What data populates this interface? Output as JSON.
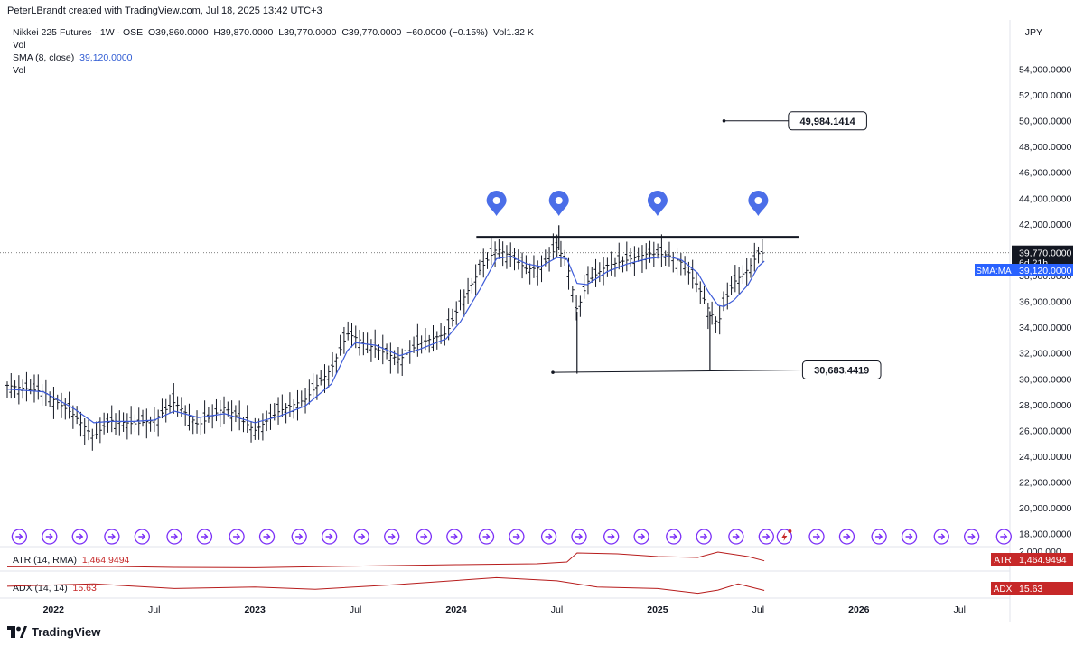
{
  "header": {
    "credit": "PeterLBrandt created with TradingView.com, Jul 18, 2025 13:42 UTC+3",
    "symbol": "Nikkei 225 Futures · 1W · OSE",
    "ohlc": {
      "o_label": "O",
      "o": "39,860.0000",
      "h_label": "H",
      "h": "39,870.0000",
      "l_label": "L",
      "l": "39,770.0000",
      "c_label": "C",
      "c": "39,770.0000",
      "change": "−60.0000 (−0.15%)",
      "vol_label": "Vol",
      "vol": "1.32 K"
    },
    "vol_row_1": "Vol",
    "sma_label": "SMA (8, close)",
    "sma_value": "39,120.0000",
    "vol_row_2": "Vol"
  },
  "currency": "JPY",
  "indicators": {
    "atr": {
      "label": "ATR (14, RMA)",
      "value": "1,464.9494",
      "tag": "ATR"
    },
    "adx": {
      "label": "ADX (14, 14)",
      "value": "15.63",
      "tag": "ADX"
    }
  },
  "price_tags": {
    "last": "39,770.0000",
    "countdown": "6d 21h",
    "sma_tag": "SMA:MA",
    "sma_value": "39,120.0000",
    "upper_target": "49,984.1414",
    "lower_level": "30,683.4419",
    "atr_axis_tick": "2,000,000"
  },
  "footer": {
    "brand": "TradingView"
  },
  "colors": {
    "bars": "#131722",
    "sma": "#3d5bd9",
    "atr_line": "#b71c1c",
    "adx_line": "#b71c1c",
    "pin": "#4b6ee8",
    "event_icon": "#7b2ff7",
    "tag_red": "#c62828",
    "tag_blue": "#2962ff"
  },
  "chart_data": {
    "type": "bar",
    "subtype": "ohlc-weekly",
    "y_axis": {
      "ticks": [
        "18,000.0000",
        "20,000.0000",
        "22,000.0000",
        "24,000.0000",
        "26,000.0000",
        "28,000.0000",
        "30,000.0000",
        "32,000.0000",
        "34,000.0000",
        "36,000.0000",
        "38,000.0000",
        "40,000.0000",
        "42,000.0000",
        "44,000.0000",
        "46,000.0000",
        "48,000.0000",
        "50,000.0000",
        "52,000.0000",
        "54,000.0000"
      ],
      "ylim": [
        17000,
        55500
      ],
      "scale": "linear"
    },
    "x_axis": {
      "tick_labels": [
        {
          "t": 2022.0,
          "label": "2022",
          "bold": true
        },
        {
          "t": 2022.5,
          "label": "Jul",
          "bold": false
        },
        {
          "t": 2023.0,
          "label": "2023",
          "bold": true
        },
        {
          "t": 2023.5,
          "label": "Jul",
          "bold": false
        },
        {
          "t": 2024.0,
          "label": "2024",
          "bold": true
        },
        {
          "t": 2024.5,
          "label": "Jul",
          "bold": false
        },
        {
          "t": 2025.0,
          "label": "2025",
          "bold": true
        },
        {
          "t": 2025.5,
          "label": "Jul",
          "bold": false
        },
        {
          "t": 2026.0,
          "label": "2026",
          "bold": true
        },
        {
          "t": 2026.5,
          "label": "Jul",
          "bold": false
        }
      ],
      "range": [
        2021.77,
        2026.75
      ]
    },
    "price_path": [
      [
        2021.77,
        29500
      ],
      [
        2021.95,
        29000
      ],
      [
        2022.1,
        27200
      ],
      [
        2022.2,
        25500
      ],
      [
        2022.28,
        26800
      ],
      [
        2022.4,
        26500
      ],
      [
        2022.5,
        26800
      ],
      [
        2022.6,
        28200
      ],
      [
        2022.72,
        26400
      ],
      [
        2022.85,
        27800
      ],
      [
        2023.0,
        26000
      ],
      [
        2023.12,
        27500
      ],
      [
        2023.25,
        28400
      ],
      [
        2023.38,
        30800
      ],
      [
        2023.46,
        33500
      ],
      [
        2023.5,
        33200
      ],
      [
        2023.6,
        32300
      ],
      [
        2023.72,
        31500
      ],
      [
        2023.82,
        32800
      ],
      [
        2023.95,
        33500
      ],
      [
        2024.02,
        35800
      ],
      [
        2024.12,
        38500
      ],
      [
        2024.2,
        40100
      ],
      [
        2024.27,
        39500
      ],
      [
        2024.35,
        38500
      ],
      [
        2024.42,
        38600
      ],
      [
        2024.5,
        40200
      ],
      [
        2024.55,
        39000
      ],
      [
        2024.6,
        35200
      ],
      [
        2024.65,
        37500
      ],
      [
        2024.75,
        38800
      ],
      [
        2024.85,
        39200
      ],
      [
        2024.95,
        39700
      ],
      [
        2025.05,
        39600
      ],
      [
        2025.12,
        39000
      ],
      [
        2025.2,
        37200
      ],
      [
        2025.25,
        35500
      ],
      [
        2025.3,
        34200
      ],
      [
        2025.33,
        35800
      ],
      [
        2025.38,
        37500
      ],
      [
        2025.45,
        38500
      ],
      [
        2025.5,
        39700
      ],
      [
        2025.53,
        39770
      ]
    ],
    "sma": {
      "name": "SMA (8, close)",
      "path": [
        [
          2021.77,
          29200
        ],
        [
          2021.95,
          29000
        ],
        [
          2022.1,
          27700
        ],
        [
          2022.2,
          26600
        ],
        [
          2022.28,
          26700
        ],
        [
          2022.4,
          26700
        ],
        [
          2022.5,
          26800
        ],
        [
          2022.6,
          27500
        ],
        [
          2022.72,
          27000
        ],
        [
          2022.85,
          27300
        ],
        [
          2023.0,
          26600
        ],
        [
          2023.12,
          27100
        ],
        [
          2023.25,
          27900
        ],
        [
          2023.38,
          29600
        ],
        [
          2023.46,
          32200
        ],
        [
          2023.5,
          32800
        ],
        [
          2023.6,
          32600
        ],
        [
          2023.72,
          31800
        ],
        [
          2023.82,
          32300
        ],
        [
          2023.95,
          33100
        ],
        [
          2024.02,
          34400
        ],
        [
          2024.12,
          37000
        ],
        [
          2024.2,
          39300
        ],
        [
          2024.27,
          39500
        ],
        [
          2024.35,
          38900
        ],
        [
          2024.42,
          38700
        ],
        [
          2024.5,
          39400
        ],
        [
          2024.55,
          39300
        ],
        [
          2024.6,
          37400
        ],
        [
          2024.65,
          37300
        ],
        [
          2024.75,
          38300
        ],
        [
          2024.85,
          38900
        ],
        [
          2024.95,
          39300
        ],
        [
          2025.05,
          39500
        ],
        [
          2025.12,
          39200
        ],
        [
          2025.2,
          38200
        ],
        [
          2025.25,
          36800
        ],
        [
          2025.3,
          35700
        ],
        [
          2025.33,
          35600
        ],
        [
          2025.38,
          36100
        ],
        [
          2025.45,
          37300
        ],
        [
          2025.5,
          38700
        ],
        [
          2025.53,
          39120
        ]
      ]
    },
    "resistance_line": {
      "t1": 2024.1,
      "t2": 2025.7,
      "price": 41000
    },
    "support_line": {
      "t1": 2024.48,
      "t2": 2025.72,
      "p1": 30500,
      "p2": 30683.4419
    },
    "target_line": {
      "t1": 2025.33,
      "t2": 2025.65,
      "price": 49984.1414
    },
    "low_spikes": [
      {
        "t": 2024.6,
        "low": 30400
      },
      {
        "t": 2025.26,
        "low": 30700
      }
    ],
    "high_spike": {
      "t": 2024.51,
      "high": 41900
    },
    "pins": [
      2024.2,
      2024.51,
      2025.0,
      2025.5
    ],
    "events": [
      2021.83,
      2021.98,
      2022.13,
      2022.29,
      2022.44,
      2022.6,
      2022.75,
      2022.91,
      2023.06,
      2023.22,
      2023.37,
      2023.53,
      2023.68,
      2023.84,
      2023.99,
      2024.15,
      2024.3,
      2024.46,
      2024.61,
      2024.77,
      2024.92,
      2025.08,
      2025.23,
      2025.39,
      2025.54,
      2025.63,
      2025.79,
      2025.94,
      2026.1,
      2026.25,
      2026.41,
      2026.56,
      2026.72
    ],
    "atr_path": [
      [
        2021.77,
        1130
      ],
      [
        2022.3,
        1150
      ],
      [
        2022.6,
        1100
      ],
      [
        2023.0,
        1080
      ],
      [
        2023.5,
        1170
      ],
      [
        2024.0,
        1250
      ],
      [
        2024.4,
        1300
      ],
      [
        2024.55,
        1400
      ],
      [
        2024.6,
        1900
      ],
      [
        2024.8,
        1850
      ],
      [
        2025.0,
        1700
      ],
      [
        2025.2,
        1650
      ],
      [
        2025.3,
        1950
      ],
      [
        2025.45,
        1700
      ],
      [
        2025.53,
        1465
      ]
    ],
    "adx_path": [
      [
        2021.77,
        21
      ],
      [
        2022.2,
        24
      ],
      [
        2022.6,
        18
      ],
      [
        2023.0,
        20
      ],
      [
        2023.3,
        17
      ],
      [
        2023.7,
        23
      ],
      [
        2024.2,
        32
      ],
      [
        2024.5,
        28
      ],
      [
        2024.7,
        20
      ],
      [
        2025.0,
        18
      ],
      [
        2025.2,
        12
      ],
      [
        2025.3,
        16
      ],
      [
        2025.4,
        24
      ],
      [
        2025.53,
        15.63
      ]
    ]
  }
}
